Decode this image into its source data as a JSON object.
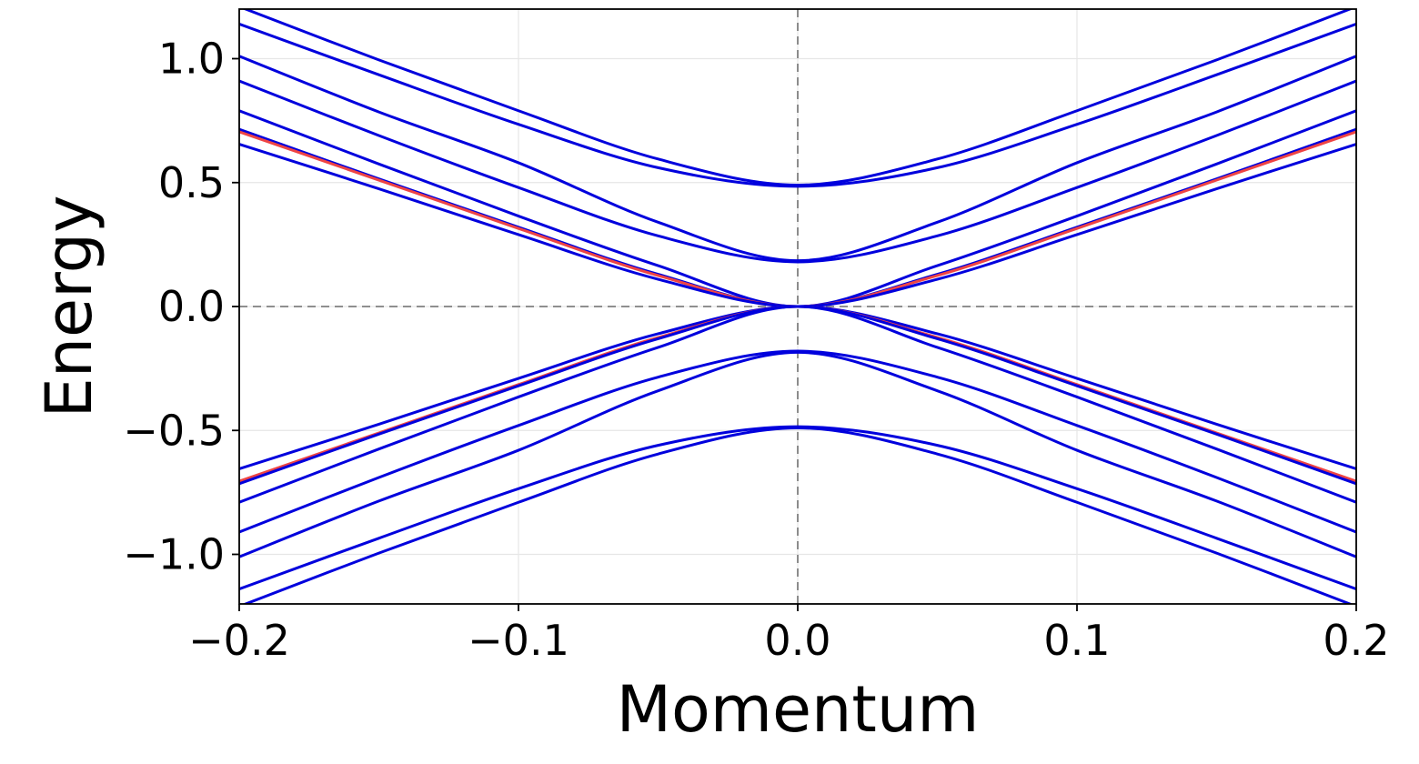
{
  "chart_data": {
    "type": "line",
    "title": "",
    "xlabel": "Momentum",
    "ylabel": "Energy",
    "xlim": [
      -0.2,
      0.2
    ],
    "ylim": [
      -1.2,
      1.2
    ],
    "x_ticks": [
      -0.2,
      -0.1,
      0.0,
      0.1,
      0.2
    ],
    "x_tick_labels": [
      "−0.2",
      "−0.1",
      "0.0",
      "0.1",
      "0.2"
    ],
    "y_ticks": [
      -1.0,
      -0.5,
      0.0,
      0.5,
      1.0
    ],
    "y_tick_labels": [
      "−1.0",
      "−0.5",
      "0.0",
      "0.5",
      "1.0"
    ],
    "grid": true,
    "reference_lines": [
      {
        "orientation": "vertical",
        "value": 0.0,
        "style": "dashed",
        "color": "#808080"
      },
      {
        "orientation": "horizontal",
        "value": 0.0,
        "style": "dashed",
        "color": "#808080"
      }
    ],
    "x": [
      -0.2,
      -0.15,
      -0.1,
      -0.05,
      0.0,
      0.05,
      0.1,
      0.15,
      0.2
    ],
    "series": [
      {
        "color": "#0000dd",
        "values": [
          1.21,
          0.995,
          0.79,
          0.595,
          0.49,
          0.595,
          0.79,
          0.995,
          1.21
        ]
      },
      {
        "color": "#0000dd",
        "values": [
          1.14,
          0.935,
          0.735,
          0.56,
          0.485,
          0.56,
          0.735,
          0.935,
          1.14
        ]
      },
      {
        "color": "#0000dd",
        "values": [
          1.01,
          0.785,
          0.58,
          0.34,
          0.185,
          0.34,
          0.58,
          0.785,
          1.01
        ]
      },
      {
        "color": "#0000dd",
        "values": [
          0.91,
          0.69,
          0.48,
          0.285,
          0.18,
          0.285,
          0.48,
          0.69,
          0.91
        ]
      },
      {
        "color": "#0000dd",
        "values": [
          0.79,
          0.575,
          0.365,
          0.165,
          0.0,
          0.165,
          0.365,
          0.575,
          0.79
        ]
      },
      {
        "color": "#0000dd",
        "values": [
          0.715,
          0.515,
          0.32,
          0.13,
          0.0,
          0.13,
          0.32,
          0.515,
          0.715
        ]
      },
      {
        "color": "#ee4444",
        "values": [
          0.705,
          0.51,
          0.315,
          0.125,
          0.0,
          0.125,
          0.315,
          0.51,
          0.705
        ]
      },
      {
        "color": "#0000dd",
        "values": [
          0.655,
          0.475,
          0.29,
          0.11,
          0.0,
          0.11,
          0.29,
          0.475,
          0.655
        ]
      },
      {
        "color": "#0000dd",
        "values": [
          -0.655,
          -0.475,
          -0.29,
          -0.11,
          0.0,
          -0.11,
          -0.29,
          -0.475,
          -0.655
        ]
      },
      {
        "color": "#ee4444",
        "values": [
          -0.705,
          -0.51,
          -0.315,
          -0.125,
          0.0,
          -0.125,
          -0.315,
          -0.51,
          -0.705
        ]
      },
      {
        "color": "#0000dd",
        "values": [
          -0.715,
          -0.515,
          -0.32,
          -0.13,
          0.0,
          -0.13,
          -0.32,
          -0.515,
          -0.715
        ]
      },
      {
        "color": "#0000dd",
        "values": [
          -0.79,
          -0.575,
          -0.365,
          -0.165,
          0.0,
          -0.165,
          -0.365,
          -0.575,
          -0.79
        ]
      },
      {
        "color": "#0000dd",
        "values": [
          -0.91,
          -0.69,
          -0.48,
          -0.285,
          -0.18,
          -0.285,
          -0.48,
          -0.69,
          -0.91
        ]
      },
      {
        "color": "#0000dd",
        "values": [
          -1.01,
          -0.785,
          -0.58,
          -0.34,
          -0.185,
          -0.34,
          -0.58,
          -0.785,
          -1.01
        ]
      },
      {
        "color": "#0000dd",
        "values": [
          -1.14,
          -0.935,
          -0.735,
          -0.56,
          -0.485,
          -0.56,
          -0.735,
          -0.935,
          -1.14
        ]
      },
      {
        "color": "#0000dd",
        "values": [
          -1.21,
          -0.995,
          -0.79,
          -0.595,
          -0.49,
          -0.595,
          -0.79,
          -0.995,
          -1.21
        ]
      }
    ],
    "colors": {
      "band": "#0000dd",
      "highlight": "#ee4444",
      "grid": "#e6e6e6",
      "reference": "#808080",
      "frame": "#000000"
    }
  }
}
